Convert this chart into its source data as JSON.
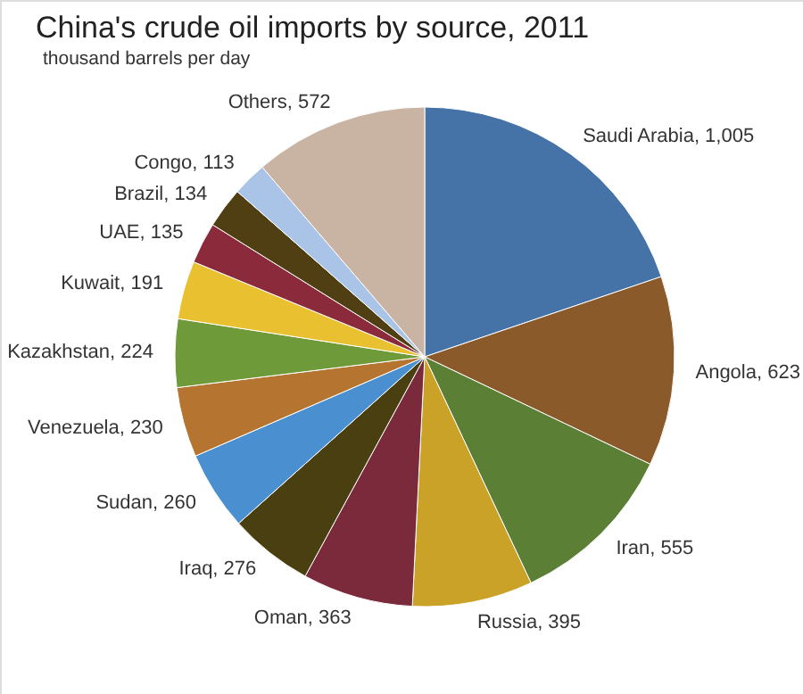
{
  "chart_data": {
    "type": "pie",
    "title": "China's crude oil imports by source, 2011",
    "subtitle": "thousand barrels per day",
    "categories": [
      "Saudi Arabia",
      "Angola",
      "Iran",
      "Russia",
      "Oman",
      "Iraq",
      "Sudan",
      "Venezuela",
      "Kazakhstan",
      "Kuwait",
      "UAE",
      "Brazil",
      "Congo",
      "Others"
    ],
    "values": [
      1005,
      623,
      555,
      395,
      363,
      276,
      260,
      230,
      224,
      191,
      135,
      134,
      113,
      572
    ],
    "colors": [
      "#4573a7",
      "#8b5a2b",
      "#5b7f35",
      "#c9a227",
      "#7a2a3a",
      "#4a3f10",
      "#4a90d0",
      "#b5742f",
      "#6f9a3a",
      "#e8c030",
      "#8b2a3a",
      "#4f3f12",
      "#a9c4e6",
      "#c9b4a4"
    ],
    "value_labels": [
      "1,005",
      "623",
      "555",
      "395",
      "363",
      "276",
      "260",
      "230",
      "224",
      "191",
      "135",
      "134",
      "113",
      "572"
    ]
  }
}
